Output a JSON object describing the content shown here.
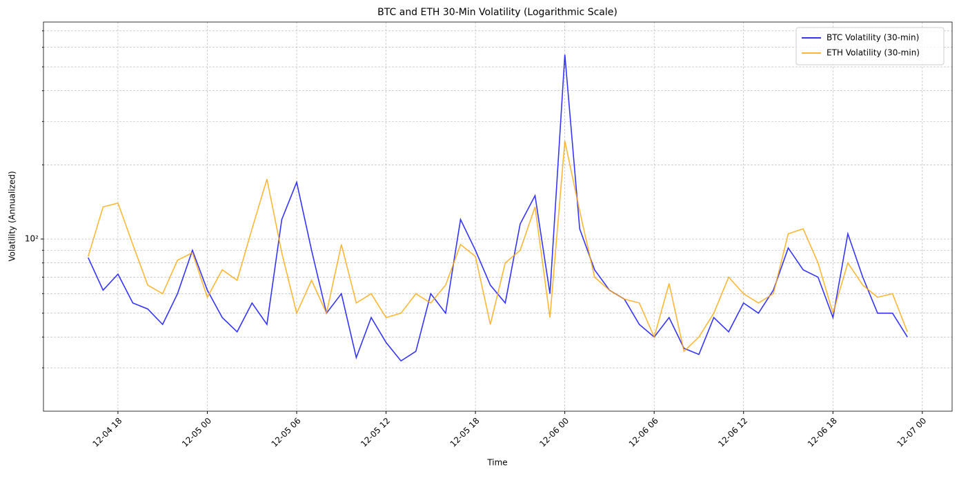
{
  "chart_data": {
    "type": "line",
    "title": "BTC and ETH 30-Min Volatility (Logarithmic Scale)",
    "xlabel": "Time",
    "ylabel": "Volatility (Annualized)",
    "x": [
      "12-04 16",
      "12-04 17",
      "12-04 18",
      "12-04 19",
      "12-04 20",
      "12-04 21",
      "12-04 22",
      "12-04 23",
      "12-05 00",
      "12-05 01",
      "12-05 02",
      "12-05 03",
      "12-05 04",
      "12-05 05",
      "12-05 06",
      "12-05 07",
      "12-05 08",
      "12-05 09",
      "12-05 10",
      "12-05 11",
      "12-05 12",
      "12-05 13",
      "12-05 14",
      "12-05 15",
      "12-05 16",
      "12-05 17",
      "12-05 18",
      "12-05 19",
      "12-05 20",
      "12-05 21",
      "12-05 22",
      "12-05 23",
      "12-06 00",
      "12-06 01",
      "12-06 02",
      "12-06 03",
      "12-06 04",
      "12-06 05",
      "12-06 06",
      "12-06 07",
      "12-06 08",
      "12-06 09",
      "12-06 10",
      "12-06 11",
      "12-06 12",
      "12-06 13",
      "12-06 14",
      "12-06 15",
      "12-06 16",
      "12-06 17",
      "12-06 18",
      "12-06 19",
      "12-06 20",
      "12-06 21",
      "12-06 22",
      "12-06 23"
    ],
    "series": [
      {
        "name": "BTC Volatility (30-min)",
        "color": "#0000ff",
        "values": [
          84,
          62,
          72,
          55,
          52,
          45,
          60,
          90,
          62,
          48,
          42,
          55,
          45,
          120,
          170,
          90,
          50,
          60,
          33,
          48,
          38,
          32,
          35,
          60,
          50,
          120,
          90,
          65,
          55,
          115,
          150,
          60,
          560,
          110,
          75,
          62,
          57,
          45,
          40,
          48,
          36,
          34,
          48,
          42,
          55,
          50,
          62,
          92,
          75,
          70,
          48,
          105,
          70,
          50,
          50,
          40
        ]
      },
      {
        "name": "ETH Volatility (30-min)",
        "color": "#ffa500",
        "values": [
          85,
          135,
          140,
          95,
          65,
          60,
          82,
          88,
          58,
          75,
          68,
          110,
          175,
          88,
          50,
          68,
          50,
          95,
          55,
          60,
          48,
          50,
          60,
          55,
          65,
          95,
          85,
          45,
          80,
          90,
          135,
          48,
          250,
          130,
          70,
          62,
          57,
          55,
          40,
          66,
          35,
          40,
          50,
          70,
          60,
          55,
          60,
          105,
          110,
          80,
          50,
          80,
          65,
          58,
          60,
          42
        ]
      }
    ],
    "xlim": [
      "12-04 13",
      "12-07 02"
    ],
    "xticks": [
      "12-04 18",
      "12-05 00",
      "12-05 06",
      "12-05 12",
      "12-05 18",
      "12-06 00",
      "12-06 06",
      "12-06 12",
      "12-06 18",
      "12-07 00"
    ],
    "ylim": [
      20,
      760
    ],
    "log_y": true,
    "yticks": [
      {
        "value": 100,
        "label": "10²"
      }
    ],
    "yminor": [
      30,
      40,
      50,
      60,
      70,
      80,
      90,
      200,
      300,
      400,
      500,
      600,
      700
    ],
    "grid": true,
    "legend": "upper right"
  }
}
